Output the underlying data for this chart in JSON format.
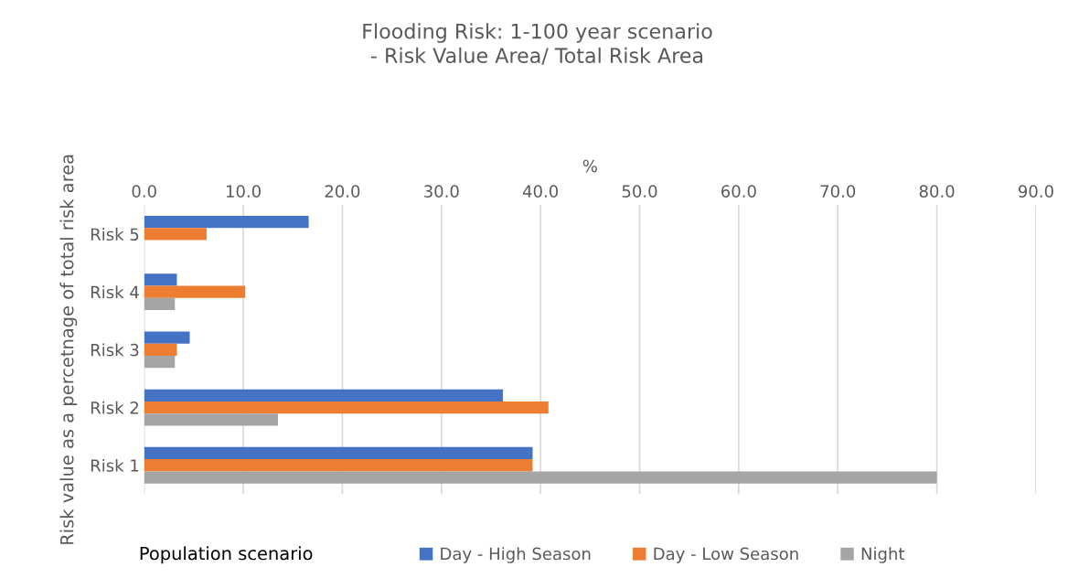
{
  "chart_data": {
    "type": "bar",
    "orientation": "horizontal",
    "title": "Flooding Risk: 1-100 year scenario\n- Risk Value Area/ Total Risk Area",
    "xlabel": "%",
    "ylabel": "Risk value as a percetnage of total risk area",
    "legend_title": "Population scenario",
    "categories": [
      "Risk 5",
      "Risk 4",
      "Risk 3",
      "Risk 2",
      "Risk 1"
    ],
    "series": [
      {
        "name": "Day - High Season",
        "color": "#4472c4",
        "values": [
          16.6,
          3.3,
          4.6,
          36.2,
          39.2
        ]
      },
      {
        "name": "Day - Low Season",
        "color": "#ed7d31",
        "values": [
          6.3,
          10.2,
          3.3,
          40.8,
          39.2
        ]
      },
      {
        "name": "Night",
        "color": "#a5a5a5",
        "values": [
          null,
          3.1,
          3.1,
          13.5,
          80.0
        ]
      }
    ],
    "xlim": [
      0,
      90
    ],
    "xticks": [
      {
        "value": 0,
        "label": "0.0"
      },
      {
        "value": 10,
        "label": "10.0"
      },
      {
        "value": 20,
        "label": "20.0"
      },
      {
        "value": 30,
        "label": "30.0"
      },
      {
        "value": 40,
        "label": "40.0"
      },
      {
        "value": 50,
        "label": "50.0"
      },
      {
        "value": 60,
        "label": "60.0"
      },
      {
        "value": 70,
        "label": "70.0"
      },
      {
        "value": 80,
        "label": "80.0"
      },
      {
        "value": 90,
        "label": "90.0"
      }
    ],
    "grid": "x",
    "legend": "bottom"
  }
}
